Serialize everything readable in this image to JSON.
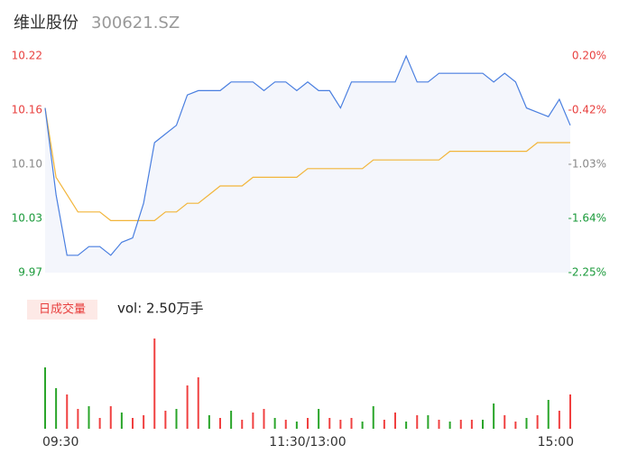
{
  "header": {
    "name": "维业股份",
    "code": "300621.SZ"
  },
  "chart_data": {
    "type": "intraday",
    "xlim": [
      0,
      240
    ],
    "xticks": [
      {
        "value": 0,
        "label": "09:30"
      },
      {
        "value": 120,
        "label": "11:30/13:00"
      },
      {
        "value": 240,
        "label": "15:00"
      }
    ],
    "ylim": [
      9.97,
      10.22
    ],
    "yticks": [
      {
        "value": 10.22,
        "label": "10.22"
      },
      {
        "value": 10.1575,
        "label": "10.16"
      },
      {
        "value": 10.095,
        "label": "10.10"
      },
      {
        "value": 10.0325,
        "label": "10.03"
      },
      {
        "value": 9.97,
        "label": "9.97"
      }
    ],
    "y2lim": [
      -2.255,
      0.196
    ],
    "y2ticks": [
      {
        "value": 0.196,
        "label": "0.20%"
      },
      {
        "value": -0.417,
        "label": "-0.42%"
      },
      {
        "value": -1.029,
        "label": "-1.03%"
      },
      {
        "value": -1.642,
        "label": "-1.64%"
      },
      {
        "value": -2.255,
        "label": "-2.25%"
      }
    ],
    "x": [
      0,
      5,
      10,
      15,
      20,
      25,
      30,
      35,
      40,
      45,
      50,
      55,
      60,
      65,
      70,
      75,
      80,
      85,
      90,
      95,
      100,
      105,
      110,
      115,
      120,
      125,
      130,
      135,
      140,
      145,
      150,
      155,
      160,
      165,
      170,
      175,
      180,
      185,
      190,
      195,
      200,
      205,
      210,
      215,
      220,
      225,
      230,
      235,
      240
    ],
    "series": [
      {
        "color": "#4a7fe0",
        "values": [
          10.16,
          10.06,
          9.99,
          9.99,
          10.0,
          10.0,
          9.99,
          10.005,
          10.01,
          10.05,
          10.12,
          10.13,
          10.14,
          10.175,
          10.18,
          10.18,
          10.18,
          10.19,
          10.19,
          10.19,
          10.18,
          10.19,
          10.19,
          10.18,
          10.19,
          10.18,
          10.18,
          10.16,
          10.19,
          10.19,
          10.19,
          10.19,
          10.19,
          10.22,
          10.19,
          10.19,
          10.2,
          10.2,
          10.2,
          10.2,
          10.2,
          10.19,
          10.2,
          10.19,
          10.16,
          10.155,
          10.15,
          10.17,
          10.14
        ]
      },
      {
        "color": "#f2b53a",
        "values": [
          10.16,
          10.08,
          10.06,
          10.04,
          10.04,
          10.04,
          10.03,
          10.03,
          10.03,
          10.03,
          10.03,
          10.04,
          10.04,
          10.05,
          10.05,
          10.06,
          10.07,
          10.07,
          10.07,
          10.08,
          10.08,
          10.08,
          10.08,
          10.08,
          10.09,
          10.09,
          10.09,
          10.09,
          10.09,
          10.09,
          10.1,
          10.1,
          10.1,
          10.1,
          10.1,
          10.1,
          10.1,
          10.11,
          10.11,
          10.11,
          10.11,
          10.11,
          10.11,
          10.11,
          10.11,
          10.12,
          10.12,
          10.12,
          10.12
        ]
      }
    ],
    "volume": {
      "legend": "日成交量",
      "label": "vol: 2.50万手",
      "values": [
        68,
        45,
        38,
        22,
        25,
        12,
        25,
        18,
        12,
        15,
        100,
        20,
        22,
        48,
        57,
        15,
        12,
        20,
        10,
        18,
        22,
        12,
        10,
        8,
        12,
        22,
        12,
        10,
        12,
        8,
        25,
        10,
        18,
        8,
        15,
        15,
        10,
        8,
        10,
        10,
        10,
        28,
        15,
        8,
        12,
        15,
        32,
        20,
        38
      ],
      "colors": [
        "#2aa52a",
        "#2aa52a",
        "#f04040",
        "#f04040",
        "#2aa52a",
        "#f04040",
        "#f04040",
        "#2aa52a",
        "#f04040",
        "#f04040",
        "#f04040",
        "#f04040",
        "#2aa52a",
        "#f04040",
        "#f04040",
        "#2aa52a",
        "#f04040",
        "#2aa52a",
        "#f04040",
        "#f04040",
        "#f04040",
        "#2aa52a",
        "#f04040",
        "#2aa52a",
        "#f04040",
        "#2aa52a",
        "#f04040",
        "#f04040",
        "#f04040",
        "#2aa52a",
        "#2aa52a",
        "#f04040",
        "#f04040",
        "#2aa52a",
        "#f04040",
        "#2aa52a",
        "#f04040",
        "#2aa52a",
        "#f04040",
        "#f04040",
        "#2aa52a",
        "#2aa52a",
        "#f04040",
        "#f04040",
        "#2aa52a",
        "#f04040",
        "#2aa52a",
        "#f04040",
        "#f04040"
      ]
    }
  }
}
